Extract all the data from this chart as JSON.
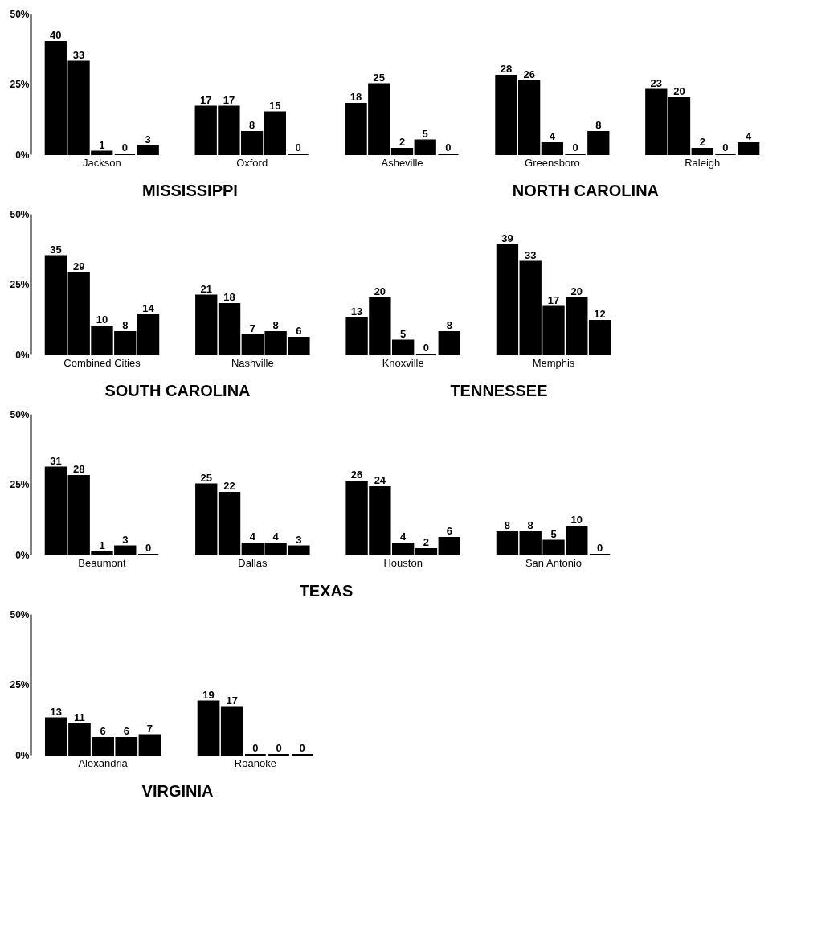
{
  "chart_data": [
    {
      "type": "bar",
      "categories": [
        "Jackson",
        "Oxford",
        "Asheville",
        "Greensboro",
        "Raleigh"
      ],
      "ylim": [
        0,
        50
      ],
      "yticks": [
        {
          "value": 0,
          "label": "0%"
        },
        {
          "value": 25,
          "label": "25%"
        },
        {
          "value": 50,
          "label": "50%"
        }
      ],
      "data_labels": true,
      "annotations": [
        "MISSISSIPPI",
        "NORTH CAROLINA"
      ],
      "series": [
        {
          "color": "#000000",
          "values": [
            40,
            17,
            18,
            28,
            23
          ]
        },
        {
          "color": "#000000",
          "values": [
            33,
            17,
            25,
            26,
            20
          ]
        },
        {
          "color": "#000000",
          "values": [
            1,
            8,
            2,
            4,
            2
          ]
        },
        {
          "color": "#000000",
          "values": [
            0,
            15,
            5,
            0,
            0
          ]
        },
        {
          "color": "#000000",
          "values": [
            3,
            0,
            0,
            8,
            4
          ]
        }
      ]
    },
    {
      "type": "bar",
      "categories": [
        "Combined Cities",
        "Nashville",
        "Knoxville",
        "Memphis"
      ],
      "ylim": [
        0,
        50
      ],
      "yticks": [
        {
          "value": 0,
          "label": "0%"
        },
        {
          "value": 25,
          "label": "25%"
        },
        {
          "value": 50,
          "label": "50%"
        }
      ],
      "data_labels": true,
      "annotations": [
        "SOUTH CAROLINA",
        "TENNESSEE"
      ],
      "series": [
        {
          "color": "#000000",
          "values": [
            35,
            21,
            13,
            39
          ]
        },
        {
          "color": "#000000",
          "values": [
            29,
            18,
            20,
            33
          ]
        },
        {
          "color": "#000000",
          "values": [
            10,
            7,
            5,
            17
          ]
        },
        {
          "color": "#000000",
          "values": [
            8,
            8,
            0,
            20
          ]
        },
        {
          "color": "#000000",
          "values": [
            14,
            6,
            8,
            12
          ]
        }
      ]
    },
    {
      "type": "bar",
      "categories": [
        "Beaumont",
        "Dallas",
        "Houston",
        "San Antonio"
      ],
      "ylim": [
        0,
        50
      ],
      "yticks": [
        {
          "value": 0,
          "label": "0%"
        },
        {
          "value": 25,
          "label": "25%"
        },
        {
          "value": 50,
          "label": "50%"
        }
      ],
      "data_labels": true,
      "annotations": [
        "TEXAS"
      ],
      "series": [
        {
          "color": "#000000",
          "values": [
            31,
            25,
            26,
            8
          ]
        },
        {
          "color": "#000000",
          "values": [
            28,
            22,
            24,
            8
          ]
        },
        {
          "color": "#000000",
          "values": [
            1,
            4,
            4,
            5
          ]
        },
        {
          "color": "#000000",
          "values": [
            3,
            4,
            2,
            10
          ]
        },
        {
          "color": "#000000",
          "values": [
            0,
            3,
            6,
            0
          ]
        }
      ]
    },
    {
      "type": "bar",
      "categories": [
        "Alexandria",
        "Roanoke"
      ],
      "ylim": [
        0,
        50
      ],
      "yticks": [
        {
          "value": 0,
          "label": "0%"
        },
        {
          "value": 25,
          "label": "25%"
        },
        {
          "value": 50,
          "label": "50%"
        }
      ],
      "data_labels": true,
      "annotations": [
        "VIRGINIA"
      ],
      "series": [
        {
          "color": "#000000",
          "values": [
            13,
            19
          ]
        },
        {
          "color": "#000000",
          "values": [
            11,
            17
          ]
        },
        {
          "color": "#000000",
          "values": [
            6,
            0
          ]
        },
        {
          "color": "#000000",
          "values": [
            6,
            0
          ]
        },
        {
          "color": "#000000",
          "values": [
            7,
            0
          ]
        }
      ]
    }
  ]
}
